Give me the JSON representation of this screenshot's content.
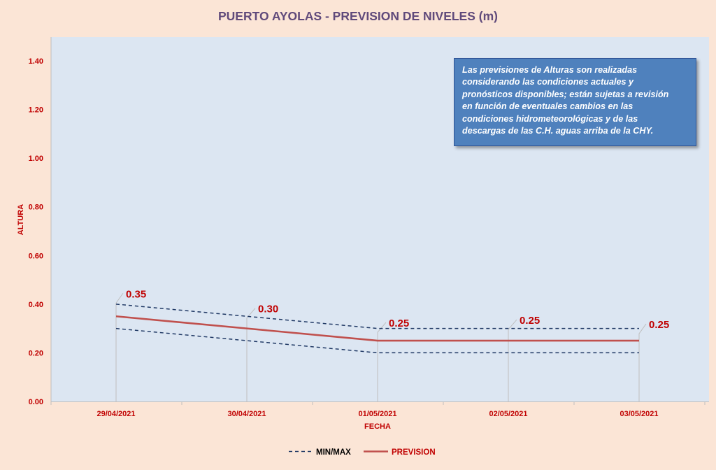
{
  "chart_data": {
    "type": "line",
    "title": "PUERTO AYOLAS - PREVISION DE NIVELES (m)",
    "xlabel": "FECHA",
    "ylabel": "ALTURA",
    "categories": [
      "29/04/2021",
      "30/04/2021",
      "01/05/2021",
      "02/05/2021",
      "03/05/2021"
    ],
    "ylim": [
      0,
      1.4
    ],
    "yticks": [
      "0.00",
      "0.20",
      "0.40",
      "0.60",
      "0.80",
      "1.00",
      "1.20",
      "1.40"
    ],
    "grid": false,
    "legend_position": "bottom",
    "series": [
      {
        "name": "MIN/MAX",
        "style": "dashed",
        "color": "#1f3864",
        "values": [
          0.4,
          0.35,
          0.3,
          0.3,
          0.3
        ]
      },
      {
        "name": "MIN/MAX",
        "style": "dashed",
        "color": "#1f3864",
        "values": [
          0.3,
          0.25,
          0.2,
          0.2,
          0.2
        ],
        "show_in_legend": false
      },
      {
        "name": "PREVISION",
        "style": "solid",
        "color": "#c0504d",
        "values": [
          0.35,
          0.3,
          0.25,
          0.25,
          0.25
        ]
      }
    ],
    "data_labels": [
      "0.35",
      "0.30",
      "0.25",
      "0.25",
      "0.25"
    ],
    "annotation": "Las previsiones de Alturas son realizadas considerando las condiciones actuales y pronósticos disponibles;  están sujetas a revisión en función de eventuales cambios en las condiciones hidrometeorológicas y de las descargas de las C.H. aguas arriba de la CHY."
  },
  "annotation_lines": [
    "Las previsiones de Alturas son realizadas",
    "considerando las condiciones actuales y",
    "pronósticos disponibles;  están sujetas a revisión",
    "en función de eventuales cambios en las",
    "condiciones hidrometeorológicas y de las",
    "descargas de las C.H. aguas arriba de la CHY."
  ],
  "colors": {
    "background": "#fbe5d6",
    "plot_area": "#dce6f2",
    "title": "#604a7b",
    "axis_text": "#c00000",
    "minmax": "#1f3864",
    "prevision": "#c0504d",
    "note_box": "#4f81bd"
  }
}
